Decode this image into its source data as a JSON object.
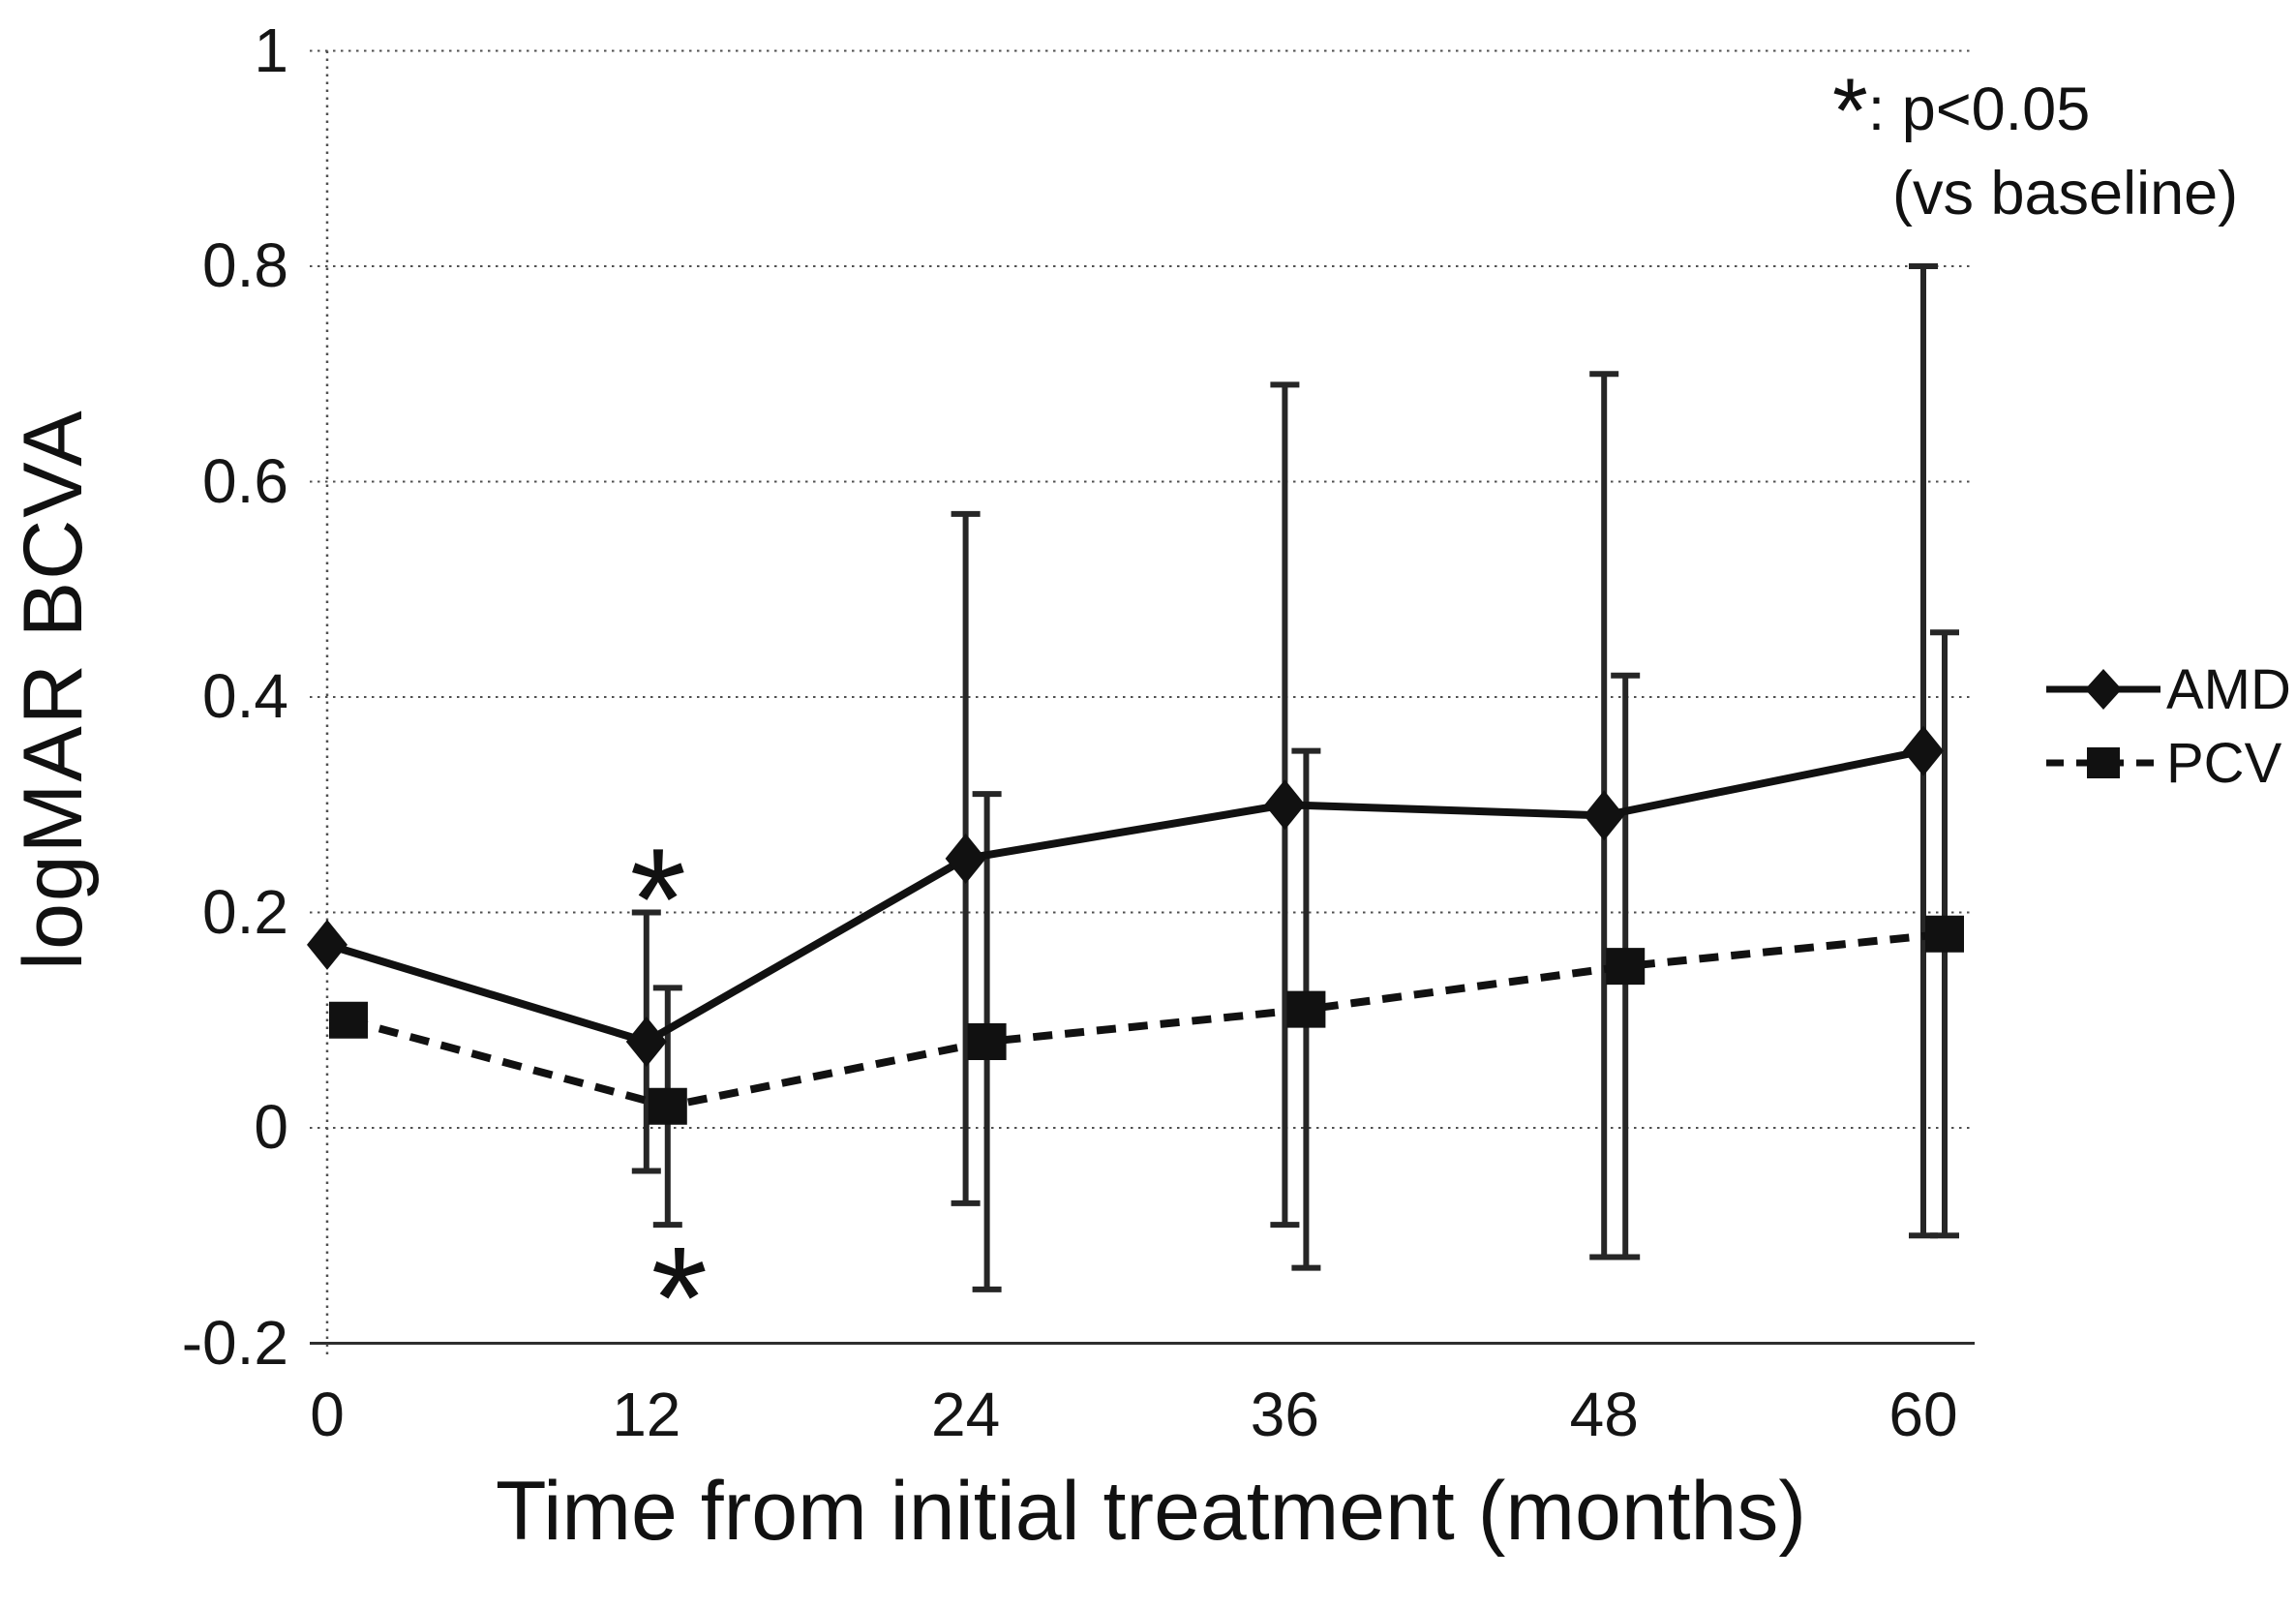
{
  "figure": {
    "background": "#ffffff",
    "ink_color": "#111111",
    "grid_color": "#4f4f4f",
    "error_bar_color": "#262626"
  },
  "annotation_note": {
    "symbol": "*",
    "line1_rest": ": p<0.05",
    "line2": "(vs baseline)"
  },
  "legend": {
    "position": "right",
    "items": [
      {
        "label": "AMD",
        "line_style": "solid",
        "marker": "diamond"
      },
      {
        "label": "PCV",
        "line_style": "dashed",
        "marker": "square"
      }
    ]
  },
  "chart_data": {
    "type": "line",
    "title": "",
    "xlabel": "Time from initial treatment (months)",
    "ylabel": "logMAR BCVA",
    "x": [
      0,
      12,
      24,
      36,
      48,
      60
    ],
    "x_tick_labels": [
      "0",
      "12",
      "24",
      "36",
      "48",
      "60"
    ],
    "y_ticks": [
      1,
      0.8,
      0.6,
      0.4,
      0.2,
      0,
      -0.2
    ],
    "y_tick_labels": [
      "1",
      "0.8",
      "0.6",
      "0.4",
      "0.2",
      "0",
      "-0.2"
    ],
    "ylim": [
      -0.2,
      1
    ],
    "xlim": [
      0,
      62
    ],
    "grid": "horizontal-dotted",
    "error_bars": "plus-minus SD, capped",
    "series": [
      {
        "name": "AMD",
        "line_style": "solid",
        "marker": "diamond",
        "values": [
          0.17,
          0.08,
          0.25,
          0.3,
          0.29,
          0.35
        ],
        "error_low": [
          null,
          -0.04,
          -0.07,
          -0.09,
          -0.12,
          -0.1
        ],
        "error_high": [
          null,
          0.2,
          0.57,
          0.69,
          0.7,
          0.8
        ]
      },
      {
        "name": "PCV",
        "line_style": "dashed",
        "marker": "square",
        "values": [
          0.1,
          0.02,
          0.08,
          0.11,
          0.15,
          0.18
        ],
        "error_low": [
          null,
          -0.09,
          -0.15,
          -0.13,
          -0.12,
          -0.1
        ],
        "error_high": [
          null,
          0.13,
          0.31,
          0.35,
          0.42,
          0.46
        ]
      }
    ],
    "significance_marks": [
      {
        "series": "AMD",
        "month": 12,
        "value": 0.235,
        "symbol": "*"
      },
      {
        "series": "PCV",
        "month": 12,
        "value": -0.135,
        "symbol": "*"
      }
    ]
  }
}
